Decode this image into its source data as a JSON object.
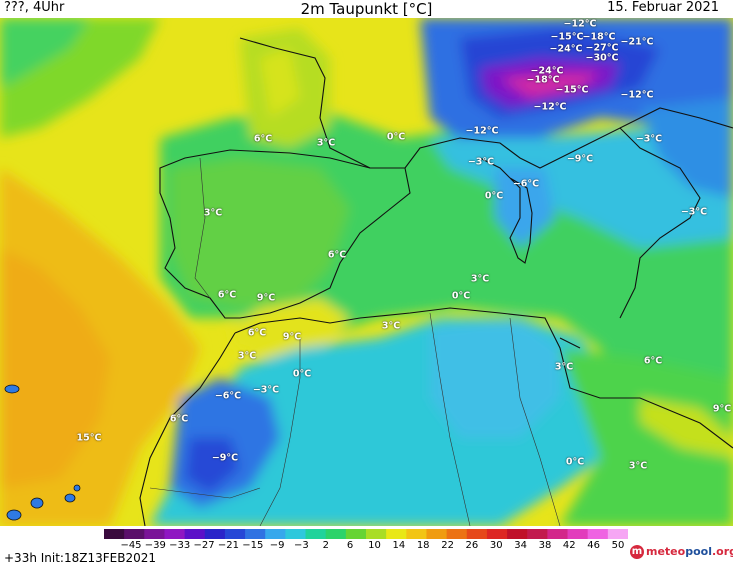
{
  "header": {
    "left": "???, 4Uhr",
    "title": "2m Taupunkt [°C]",
    "date": "15. Februar 2021"
  },
  "footer": {
    "run": "+33h  Init:18Z13FEB2021",
    "logo_a": "meteo",
    "logo_b": "pool",
    "logo_c": ".org"
  },
  "legend": {
    "ticks": [
      "−45",
      "−39",
      "−33",
      "−27",
      "−21",
      "−15",
      "−9",
      "−3",
      "2",
      "6",
      "10",
      "14",
      "18",
      "22",
      "26",
      "30",
      "34",
      "38",
      "42",
      "46",
      "50"
    ],
    "colors": [
      "#3a0a3e",
      "#5a0f6a",
      "#7a1398",
      "#8f16c2",
      "#5b10c8",
      "#2a24c9",
      "#2647d6",
      "#2f72e2",
      "#36a8ec",
      "#2ec8dc",
      "#20d39b",
      "#2cd36a",
      "#66d434",
      "#a9dd25",
      "#e9e816",
      "#f2c515",
      "#f09c10",
      "#ec7214",
      "#e6481a",
      "#dd2623",
      "#c0102a",
      "#c21a4e",
      "#d3268a",
      "#e23cbc",
      "#ef63e2",
      "#f6a6f4"
    ]
  },
  "labels": [
    {
      "t": "−12°C"
    },
    {
      "t": "−15°C"
    },
    {
      "t": "−18°C"
    },
    {
      "t": "−21°C"
    },
    {
      "t": "−24°C"
    },
    {
      "t": "−27°C"
    },
    {
      "t": "−30°C"
    },
    {
      "t": "−24°C"
    },
    {
      "t": "−18°C"
    },
    {
      "t": "−15°C"
    },
    {
      "t": "−12°C"
    },
    {
      "t": "−12°C"
    },
    {
      "t": "−12°C"
    },
    {
      "t": "−3°C"
    },
    {
      "t": "−9°C"
    },
    {
      "t": "−3°C"
    },
    {
      "t": "−6°C"
    },
    {
      "t": "0°C"
    },
    {
      "t": "−3°C"
    },
    {
      "t": "6°C"
    },
    {
      "t": "3°C"
    },
    {
      "t": "0°C"
    },
    {
      "t": "3°C"
    },
    {
      "t": "6°C"
    },
    {
      "t": "3°C"
    },
    {
      "t": "6°C"
    },
    {
      "t": "9°C"
    },
    {
      "t": "0°C"
    },
    {
      "t": "3°C"
    },
    {
      "t": "6°C"
    },
    {
      "t": "9°C"
    },
    {
      "t": "3°C"
    },
    {
      "t": "3°C"
    },
    {
      "t": "0°C"
    },
    {
      "t": "−3°C"
    },
    {
      "t": "−6°C"
    },
    {
      "t": "6°C"
    },
    {
      "t": "6°C"
    },
    {
      "t": "9°C"
    },
    {
      "t": "15°C"
    },
    {
      "t": "−9°C"
    },
    {
      "t": "0°C"
    },
    {
      "t": "3°C"
    }
  ]
}
